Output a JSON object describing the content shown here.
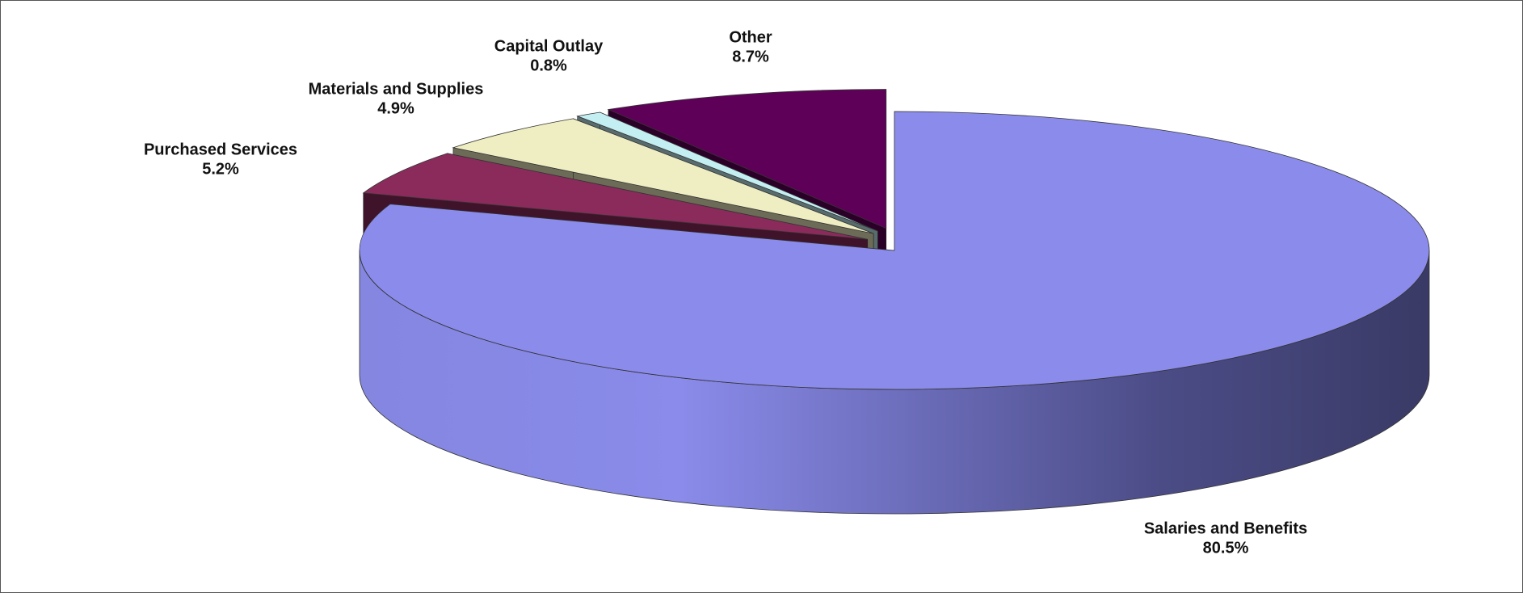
{
  "chart_data": {
    "type": "pie",
    "categories": [
      "Salaries and Benefits",
      "Purchased Services",
      "Materials and Supplies",
      "Capital Outlay",
      "Other"
    ],
    "values": [
      80.5,
      5.2,
      4.9,
      0.8,
      8.7
    ],
    "value_labels": [
      "80.5%",
      "5.2%",
      "4.9%",
      "0.8%",
      "8.7%"
    ],
    "colors": [
      "#8b8bec",
      "#8b2b5c",
      "#efeec2",
      "#c3eef2",
      "#5f0058"
    ]
  }
}
